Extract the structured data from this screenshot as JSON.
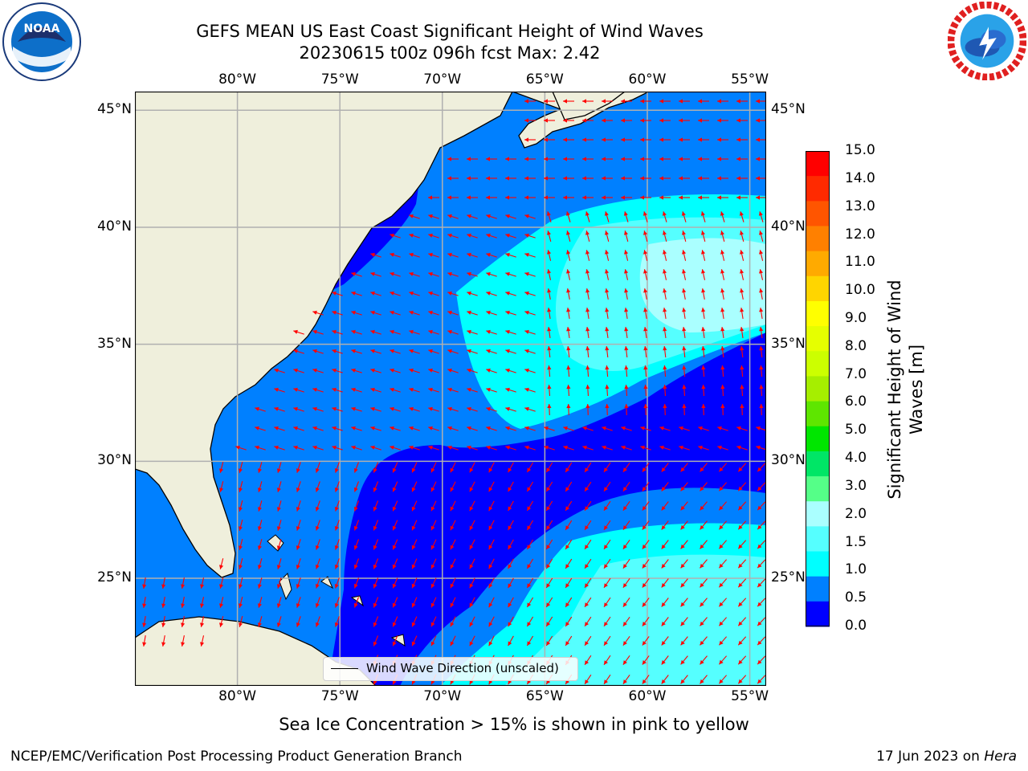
{
  "title": {
    "line1": "GEFS MEAN US East Coast Significant Height of Wind Waves",
    "line2": "20230615 t00z 096h fcst   Max: 2.42"
  },
  "logos": {
    "left": {
      "text": "NOAA",
      "icon": "noaa-logo-icon"
    },
    "right": {
      "icon": "nws-logo-icon"
    }
  },
  "map": {
    "lon_ticks": [
      "80°W",
      "75°W",
      "70°W",
      "65°W",
      "60°W",
      "55°W"
    ],
    "lat_ticks": [
      "45°N",
      "40°N",
      "35°N",
      "30°N",
      "25°N"
    ],
    "lon_values": [
      -80,
      -75,
      -70,
      -65,
      -60,
      -55
    ],
    "lat_values": [
      45,
      40,
      35,
      30,
      25
    ],
    "lon_range": [
      -85,
      -54.2
    ],
    "lat_range": [
      20.4,
      45.8
    ],
    "land_color": "#efefdc",
    "arrow_color": "#ff0000"
  },
  "legend": {
    "label": "Wind Wave Direction (unscaled)"
  },
  "colorbar": {
    "title_line1": "Significant Height of Wind",
    "title_line2": "Waves [m]",
    "labels": [
      "15.0",
      "14.0",
      "13.0",
      "12.0",
      "11.0",
      "10.0",
      "9.0",
      "8.0",
      "7.0",
      "6.0",
      "5.0",
      "4.0",
      "3.0",
      "2.0",
      "1.5",
      "1.0",
      "0.5",
      "0.0"
    ],
    "colors": [
      "#ff0000",
      "#ff2a00",
      "#ff5500",
      "#ff8000",
      "#ffaa00",
      "#ffd500",
      "#ffff00",
      "#e6ff00",
      "#ccff00",
      "#a6ee00",
      "#5ee600",
      "#00e600",
      "#00e666",
      "#55ff88",
      "#aaffff",
      "#55ffff",
      "#00ffff",
      "#0080ff",
      "#0000ff"
    ]
  },
  "note": "Sea Ice Concentration > 15% is shown in pink to yellow",
  "footer": {
    "left": "NCEP/EMC/Verification Post Processing Product Generation Branch",
    "right_prefix": "17 Jun 2023 on ",
    "right_host": "Hera"
  }
}
